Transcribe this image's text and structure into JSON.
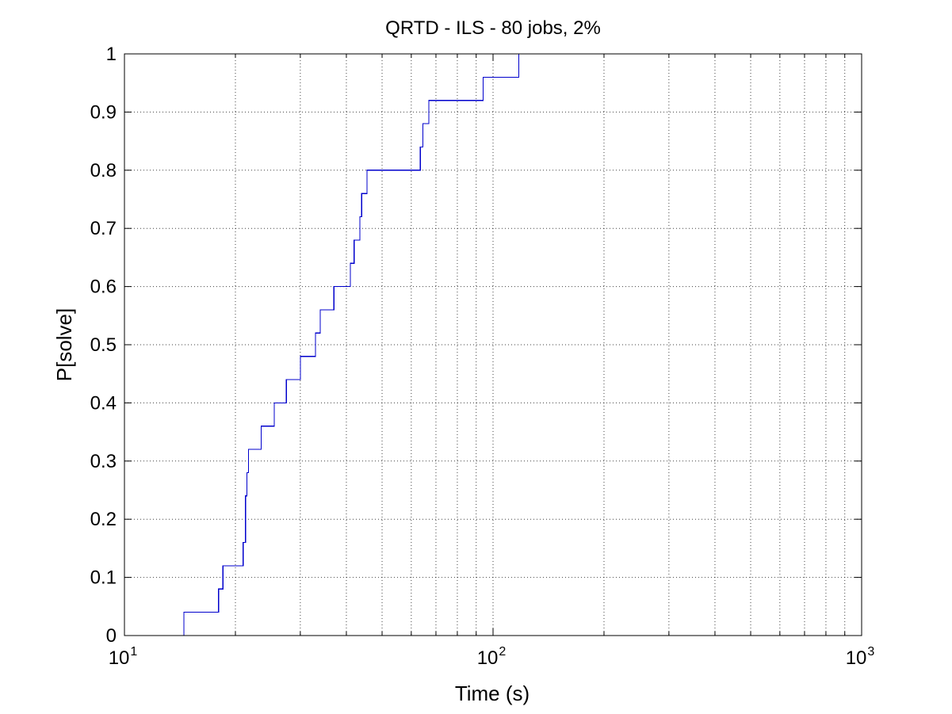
{
  "chart_data": {
    "type": "line",
    "title": "QRTD - ILS - 80 jobs, 2%",
    "xlabel": "Time (s)",
    "ylabel": "P[solve]",
    "xscale": "log",
    "xlim": [
      10,
      1000
    ],
    "ylim": [
      0,
      1
    ],
    "grid": true,
    "x_ticks": [
      {
        "value": 10,
        "base": "10",
        "exp": "1"
      },
      {
        "value": 100,
        "base": "10",
        "exp": "2"
      },
      {
        "value": 1000,
        "base": "10",
        "exp": "3"
      }
    ],
    "y_ticks": [
      {
        "value": 0,
        "label": "0"
      },
      {
        "value": 0.1,
        "label": "0.1"
      },
      {
        "value": 0.2,
        "label": "0.2"
      },
      {
        "value": 0.3,
        "label": "0.3"
      },
      {
        "value": 0.4,
        "label": "0.4"
      },
      {
        "value": 0.5,
        "label": "0.5"
      },
      {
        "value": 0.6,
        "label": "0.6"
      },
      {
        "value": 0.7,
        "label": "0.7"
      },
      {
        "value": 0.8,
        "label": "0.8"
      },
      {
        "value": 0.9,
        "label": "0.9"
      },
      {
        "value": 1,
        "label": "1"
      }
    ],
    "series": [
      {
        "color": "#0000cc",
        "step": "post",
        "x": [
          14.5,
          18.0,
          18.5,
          21.0,
          21.3,
          21.5,
          21.7,
          22.0,
          23.5,
          25.5,
          27.5,
          30.0,
          33.0,
          34.0,
          37.0,
          41.0,
          42.0,
          42.5,
          43.5,
          44.0,
          45.5,
          63.5,
          64.5,
          67.0,
          94.0,
          117.5
        ],
        "y": [
          0.04,
          0.08,
          0.12,
          0.16,
          0.24,
          0.28,
          0.32,
          0.32,
          0.36,
          0.4,
          0.44,
          0.48,
          0.52,
          0.56,
          0.6,
          0.64,
          0.68,
          0.68,
          0.72,
          0.76,
          0.8,
          0.84,
          0.88,
          0.92,
          0.96,
          1.0
        ],
        "start": {
          "x": 14.5,
          "y": 0
        }
      }
    ]
  }
}
